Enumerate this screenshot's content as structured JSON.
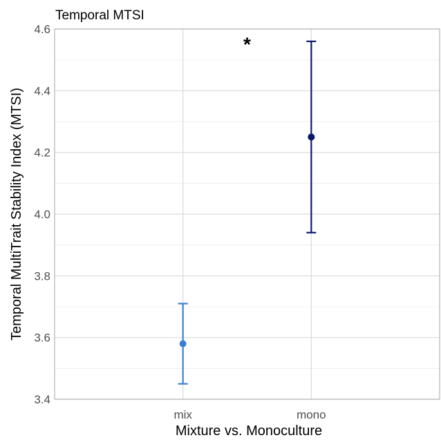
{
  "chart_data": {
    "type": "scatter",
    "title": "Temporal MTSI",
    "xlabel": "Mixture vs. Monoculture",
    "ylabel": "Temporal MultiTrait Stability Index (MTSI)",
    "categories": [
      "mix",
      "mono"
    ],
    "ylim": [
      3.4,
      4.6
    ],
    "yticks": [
      "3.4",
      "3.6",
      "3.8",
      "4.0",
      "4.2",
      "4.4",
      "4.6"
    ],
    "grid": true,
    "legend": "none",
    "points": [
      {
        "category": "mix",
        "mean": 3.58,
        "lower": 3.45,
        "upper": 3.71,
        "color": "#3a7fd5"
      },
      {
        "category": "mono",
        "mean": 4.25,
        "lower": 3.94,
        "upper": 4.56,
        "color": "#0c1a6b"
      }
    ],
    "annotation": {
      "text": "*",
      "x": 1.5,
      "y": 4.57
    }
  }
}
